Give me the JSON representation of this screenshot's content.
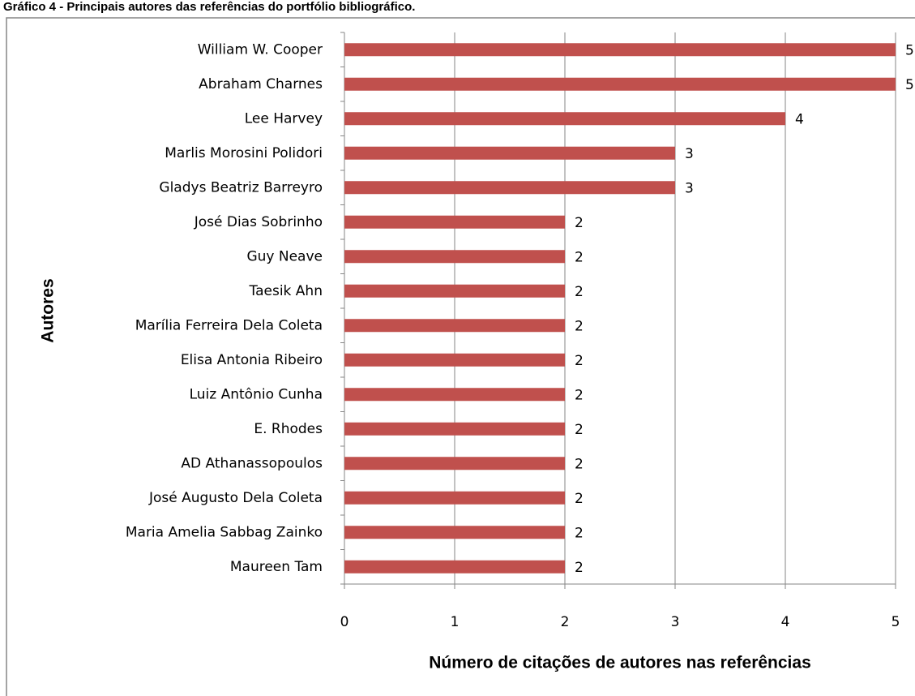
{
  "chart_data": {
    "type": "bar",
    "orientation": "horizontal",
    "title": "Gráfico 4 - Principais autores das referências do portfólio bibliográfico.",
    "x_label": "Número de citações de autores nas referências",
    "y_label": "Autores",
    "categories": [
      "William W. Cooper",
      "Abraham Charnes",
      "Lee Harvey",
      "Marlis Morosini Polidori",
      "Gladys Beatriz Barreyro",
      "José Dias Sobrinho",
      "Guy Neave",
      "Taesik Ahn",
      "Marília Ferreira Dela Coleta",
      "Elisa Antonia Ribeiro",
      "Luiz Antônio Cunha",
      "E. Rhodes",
      "AD Athanassopoulos",
      "José Augusto Dela Coleta",
      "Maria Amelia Sabbag Zainko",
      "Maureen Tam"
    ],
    "values": [
      5,
      5,
      4,
      3,
      3,
      2,
      2,
      2,
      2,
      2,
      2,
      2,
      2,
      2,
      2,
      2
    ],
    "color": "#c0504d",
    "xlim": [
      0,
      5
    ],
    "xticks": [
      0,
      1,
      2,
      3,
      4,
      5
    ],
    "grid": true
  }
}
